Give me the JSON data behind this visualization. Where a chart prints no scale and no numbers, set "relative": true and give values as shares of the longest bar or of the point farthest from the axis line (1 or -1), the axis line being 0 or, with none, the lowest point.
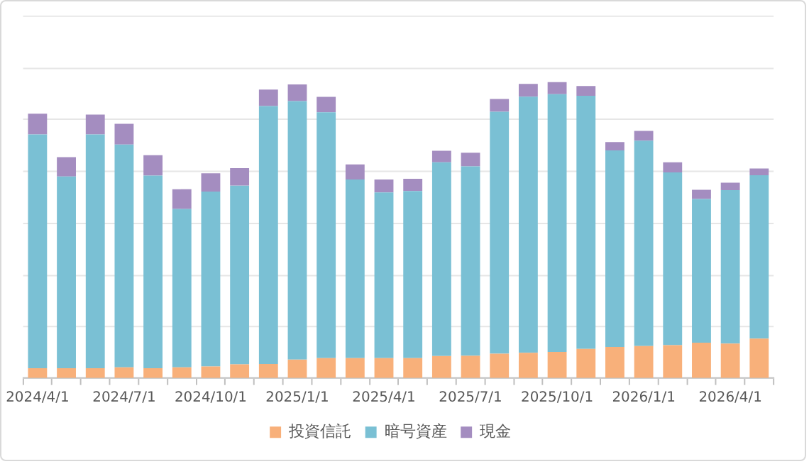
{
  "chart_data": {
    "type": "bar",
    "stacked": true,
    "relative": true,
    "grid": "y",
    "legend": "bottom",
    "categories": [
      "2024/4/1",
      null,
      null,
      "2024/7/1",
      null,
      null,
      "2024/10/1",
      null,
      null,
      "2025/1/1",
      null,
      null,
      "2025/4/1",
      null,
      null,
      "2025/7/1",
      null,
      null,
      "2025/10/1",
      null,
      null,
      "2026/1/1",
      null,
      null,
      "2026/4/1",
      null
    ],
    "series": [
      {
        "name": "投資信託",
        "color": "#f8b07a",
        "values": [
          0.033,
          0.033,
          0.033,
          0.036,
          0.033,
          0.036,
          0.039,
          0.046,
          0.047,
          0.062,
          0.067,
          0.067,
          0.067,
          0.067,
          0.074,
          0.075,
          0.082,
          0.085,
          0.088,
          0.098,
          0.105,
          0.108,
          0.111,
          0.119,
          0.116,
          0.133
        ]
      },
      {
        "name": "暗号資産",
        "color": "#7ac0d4",
        "values": [
          0.79,
          0.648,
          0.79,
          0.753,
          0.651,
          0.535,
          0.591,
          0.604,
          0.872,
          0.874,
          0.831,
          0.604,
          0.56,
          0.565,
          0.655,
          0.64,
          0.818,
          0.866,
          0.871,
          0.856,
          0.664,
          0.694,
          0.584,
          0.486,
          0.519,
          0.552
        ]
      },
      {
        "name": "現金",
        "color": "#a48dc0",
        "values": [
          0.07,
          0.065,
          0.067,
          0.07,
          0.069,
          0.067,
          0.062,
          0.059,
          0.056,
          0.056,
          0.052,
          0.051,
          0.044,
          0.041,
          0.039,
          0.046,
          0.043,
          0.043,
          0.041,
          0.033,
          0.028,
          0.033,
          0.034,
          0.031,
          0.025,
          0.023
        ]
      }
    ]
  }
}
